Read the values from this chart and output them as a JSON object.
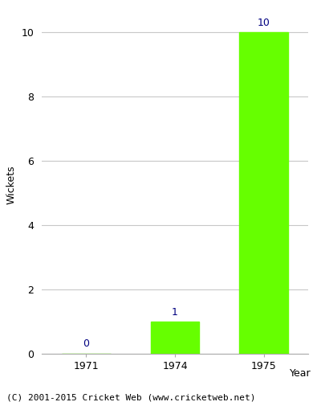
{
  "years": [
    "1971",
    "1974",
    "1975"
  ],
  "values": [
    0,
    1,
    10
  ],
  "bar_color": "#66ff00",
  "bar_edgecolor": "#66ff00",
  "xlabel": "Year",
  "ylabel": "Wickets",
  "ylim": [
    0,
    10.5
  ],
  "yticks": [
    0,
    2,
    4,
    6,
    8,
    10
  ],
  "label_color": "#000080",
  "label_fontsize": 9,
  "axis_label_fontsize": 9,
  "tick_fontsize": 9,
  "footer_text": "(C) 2001-2015 Cricket Web (www.cricketweb.net)",
  "footer_fontsize": 8,
  "background_color": "#ffffff",
  "grid_color": "#c8c8c8",
  "bar_width": 0.55,
  "xlim": [
    -0.5,
    2.5
  ]
}
